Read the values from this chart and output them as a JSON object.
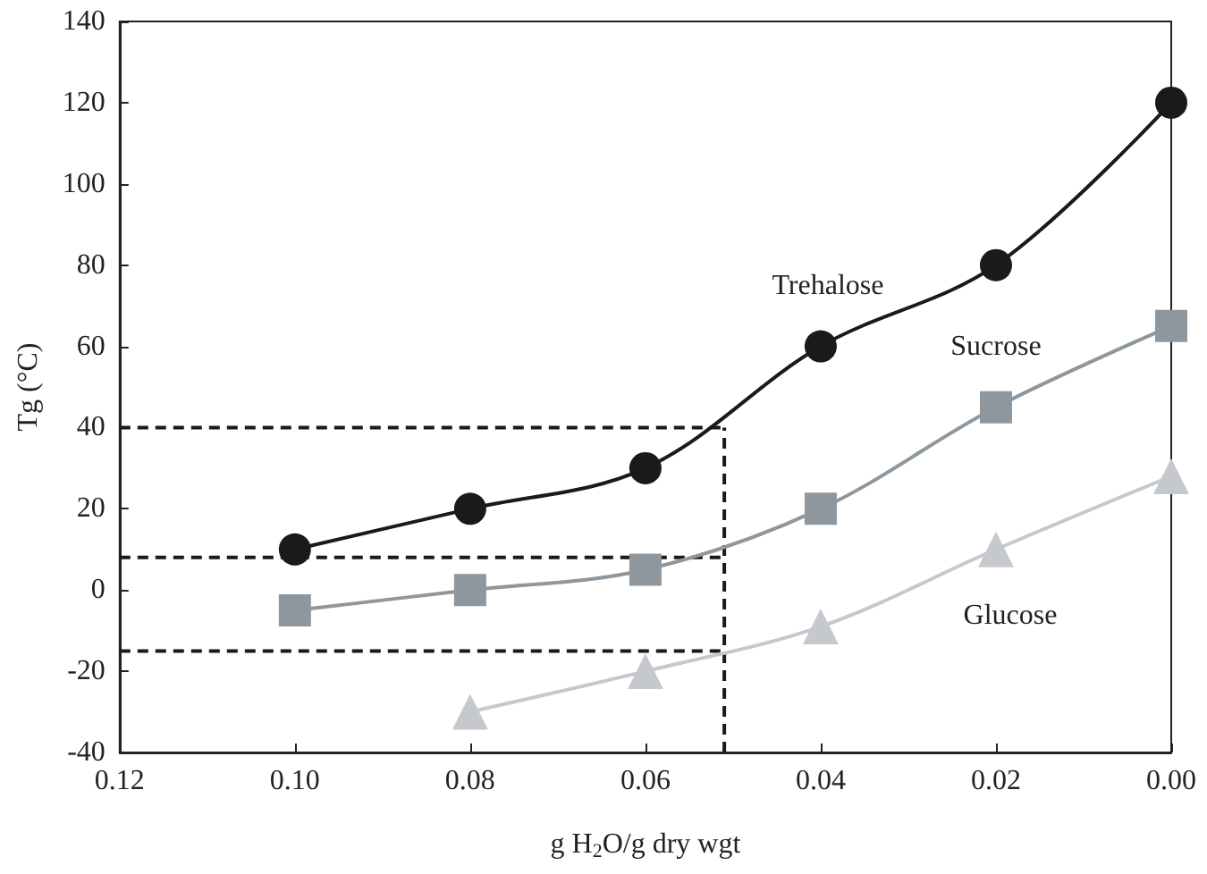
{
  "chart_data": {
    "type": "line",
    "xlabel": "g H$_{2}$O/g dry wgt",
    "ylabel": "Tg (°C)",
    "xlim": [
      0.12,
      0
    ],
    "xticks": [
      {
        "value": 0.12,
        "label": "0.12"
      },
      {
        "value": 0.1,
        "label": "0.10"
      },
      {
        "value": 0.08,
        "label": "0.08"
      },
      {
        "value": 0.06,
        "label": "0.06"
      },
      {
        "value": 0.04,
        "label": "0.04"
      },
      {
        "value": 0.02,
        "label": "0.02"
      },
      {
        "value": 0,
        "label": "0.00"
      }
    ],
    "ylim": [
      -40,
      140
    ],
    "yticks": [
      -40,
      -20,
      0,
      20,
      40,
      60,
      80,
      100,
      120,
      140
    ],
    "grid": false,
    "legend": false,
    "line_style": "solid",
    "series": [
      {
        "name": "Trehalose",
        "color": "#1a1a1a",
        "marker": "circle",
        "x": [
          0.1,
          0.08,
          0.06,
          0.04,
          0.02,
          0
        ],
        "values": [
          10,
          20,
          30,
          60,
          80,
          120
        ]
      },
      {
        "name": "Sucrose",
        "color": "#8e979e",
        "marker": "square",
        "x": [
          0.1,
          0.08,
          0.06,
          0.04,
          0.02,
          0
        ],
        "values": [
          -5,
          0,
          5,
          20,
          45,
          65
        ]
      },
      {
        "name": "Glucose",
        "color": "#c5c8cc",
        "marker": "triangle",
        "x": [
          0.08,
          0.06,
          0.04,
          0.02,
          0
        ],
        "values": [
          -30,
          -20,
          -9,
          10,
          28
        ]
      }
    ],
    "ref_lines": [
      {
        "axis": "x",
        "value": 0.051,
        "color": "#1a1a1a",
        "line_style": "dashed"
      },
      {
        "axis": "y",
        "value": 40,
        "color": "#1a1a1a",
        "line_style": "dashed"
      },
      {
        "axis": "y",
        "value": 8,
        "color": "#1a1a1a",
        "line_style": "dashed"
      },
      {
        "axis": "y",
        "value": -15,
        "color": "#1a1a1a",
        "line_style": "dashed"
      }
    ]
  }
}
